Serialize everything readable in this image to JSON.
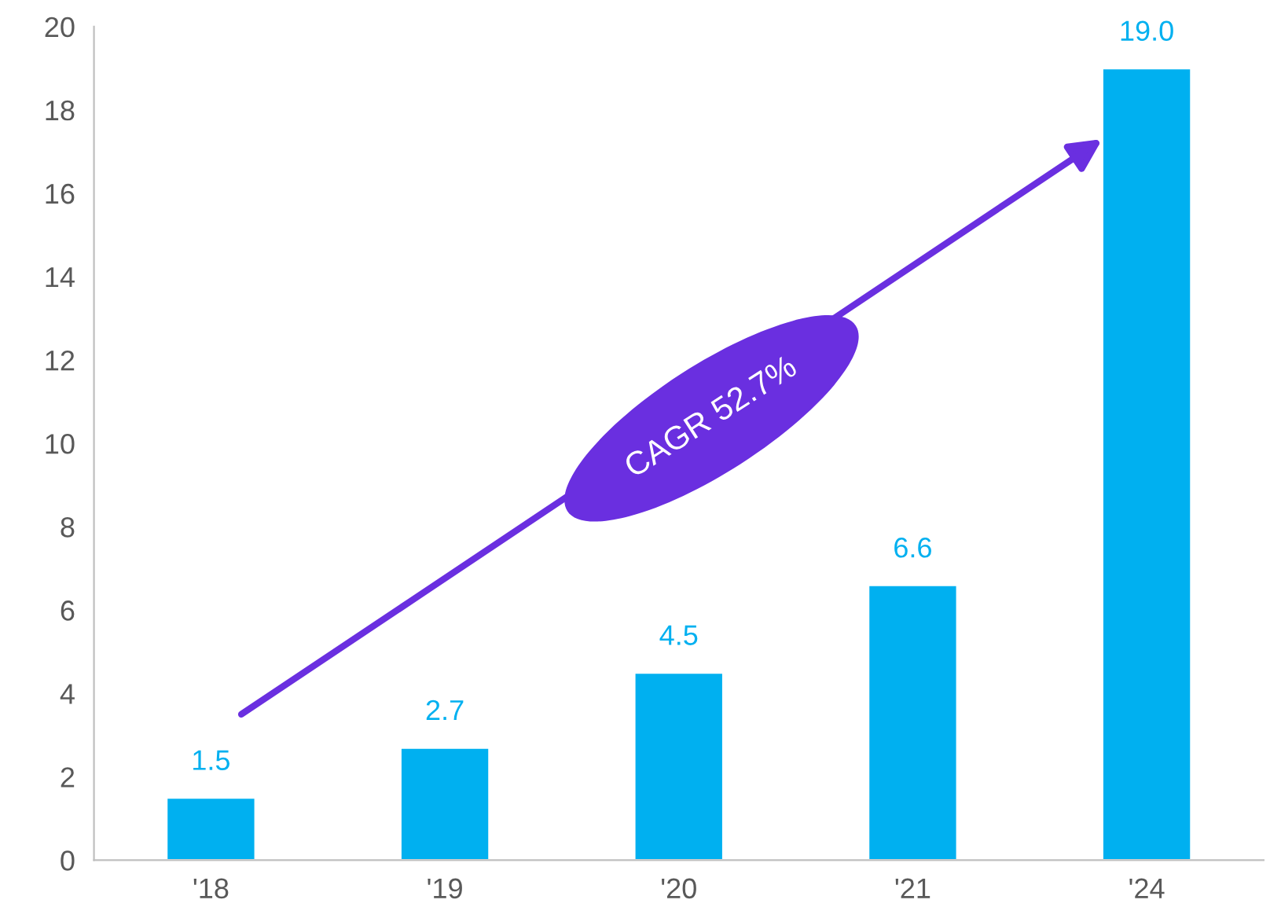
{
  "chart_data": {
    "type": "bar",
    "categories": [
      "'18",
      "'19",
      "'20",
      "'21",
      "'24"
    ],
    "values": [
      1.5,
      2.7,
      4.5,
      6.6,
      19.0
    ],
    "color": "#00b0f0",
    "ylim": [
      0,
      20
    ],
    "yticks": [
      0,
      2,
      4,
      6,
      8,
      10,
      12,
      14,
      16,
      18,
      20
    ],
    "value_labels": [
      "1.5",
      "2.7",
      "4.5",
      "6.6",
      "19.0"
    ],
    "grid": false,
    "annotations": [
      "CAGR 52.7%"
    ]
  }
}
